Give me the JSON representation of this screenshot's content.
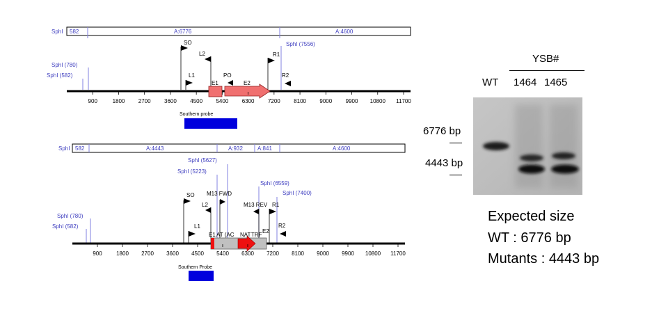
{
  "map_top": {
    "bar_segments": [
      "SphI",
      "582",
      "A:6776",
      "A:4600"
    ],
    "left_markers": [
      "SphI (780)",
      "SphI (582)"
    ],
    "right_marker": "SphI (7556)",
    "feature_labels": [
      "SO",
      "L2",
      "L1",
      "E1",
      "PO",
      "E2",
      "R1",
      "R2"
    ],
    "axis_ticks": [
      "900",
      "1800",
      "2700",
      "3600",
      "4500",
      "5400",
      "6300",
      "7200",
      "8100",
      "9000",
      "9900",
      "10800",
      "11700"
    ],
    "probe_label": "Southern probe"
  },
  "map_bottom": {
    "bar_segments": [
      "SphI",
      "582",
      "A:4443",
      "A:932",
      "A:841",
      "A:4600"
    ],
    "left_markers": [
      "SphI (780)",
      "SphI (582)"
    ],
    "inner_markers": [
      "SphI (5627)",
      "SphI (5223)",
      "SphI (6559)",
      "SphI (7400)"
    ],
    "feature_labels": [
      "SO",
      "M13 FWD",
      "L2",
      "L1",
      "M13 REV",
      "R1",
      "R2",
      "E1",
      "AT (AC",
      "NAT",
      "TRF",
      "E2"
    ],
    "axis_ticks": [
      "900",
      "1800",
      "2700",
      "3600",
      "4500",
      "5400",
      "6300",
      "7200",
      "8100",
      "9000",
      "9900",
      "10800",
      "11700"
    ],
    "probe_label": "Southern Probe"
  },
  "blot": {
    "group_label": "YSB#",
    "lane_labels": [
      "WT",
      "1464",
      "1465"
    ],
    "size_markers": [
      "6776 bp",
      "4443 bp"
    ]
  },
  "expected": {
    "title": "Expected size",
    "lines": [
      "WT : 6776 bp",
      "Mutants : 4443 bp"
    ]
  },
  "colors": {
    "marker_text": "#4040c0",
    "marker_line": "#8080e0",
    "exon_pink": "#f07070",
    "nat_red": "#ee1111",
    "probe_blue": "#0000dd",
    "cassette_gray": "#c0c0c0"
  }
}
